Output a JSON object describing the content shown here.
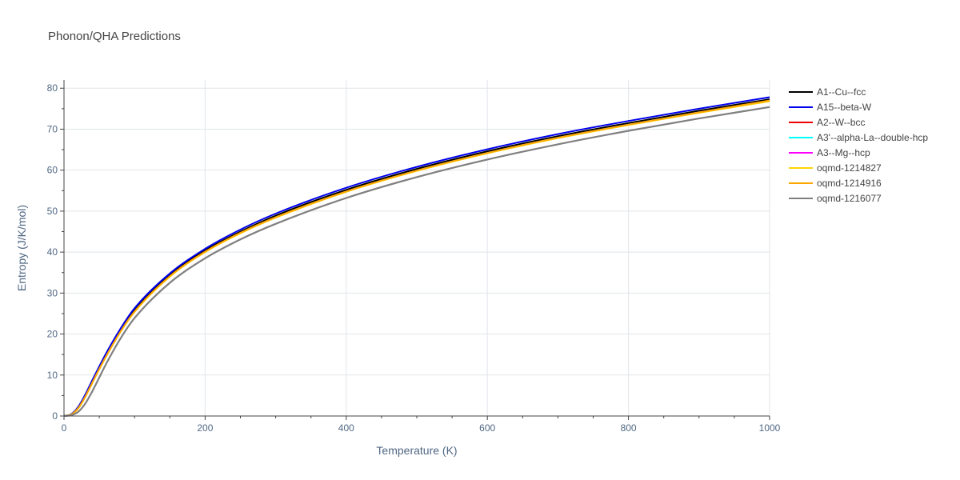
{
  "chart_data": {
    "type": "line",
    "title": "Phonon/QHA Predictions",
    "xlabel": "Temperature (K)",
    "ylabel": "Entropy (J/K/mol)",
    "xlim": [
      0,
      1000
    ],
    "ylim": [
      0,
      82
    ],
    "xticks": [
      0,
      200,
      400,
      600,
      800,
      1000
    ],
    "yticks": [
      0,
      10,
      20,
      30,
      40,
      50,
      60,
      70,
      80
    ],
    "grid": true,
    "legend_position": "right",
    "x": [
      0,
      10,
      20,
      30,
      40,
      50,
      60,
      80,
      100,
      150,
      200,
      250,
      300,
      400,
      500,
      600,
      700,
      800,
      900,
      1000
    ],
    "series": [
      {
        "name": "A1--Cu--fcc",
        "color": "#000000",
        "width": 2,
        "values": [
          0,
          0.4,
          2.0,
          4.9,
          8.3,
          11.7,
          15.0,
          20.9,
          25.8,
          34.4,
          40.4,
          45.0,
          48.9,
          55.2,
          60.3,
          64.6,
          68.3,
          71.5,
          74.5,
          77.3
        ]
      },
      {
        "name": "A15--beta-W",
        "color": "#0000ee",
        "width": 2,
        "values": [
          0,
          0.45,
          2.2,
          5.2,
          8.7,
          12.1,
          15.4,
          21.3,
          26.3,
          34.8,
          40.8,
          45.5,
          49.4,
          55.7,
          60.8,
          65.1,
          68.8,
          72.0,
          75.0,
          77.8
        ]
      },
      {
        "name": "A2--W--bcc",
        "color": "#ee0000",
        "width": 1.5,
        "values": [
          0,
          0.2,
          1.0,
          3.0,
          6.0,
          9.4,
          12.8,
          18.9,
          23.9,
          32.5,
          38.5,
          43.1,
          46.9,
          53.2,
          58.3,
          62.6,
          66.3,
          69.6,
          72.6,
          75.4
        ]
      },
      {
        "name": "A3'--alpha-La--double-hcp",
        "color": "#00ffff",
        "width": 1.5,
        "values": [
          0,
          0.2,
          1.0,
          3.0,
          6.0,
          9.4,
          12.8,
          18.9,
          23.9,
          32.5,
          38.5,
          43.1,
          46.9,
          53.2,
          58.3,
          62.6,
          66.3,
          69.6,
          72.6,
          75.4
        ]
      },
      {
        "name": "A3--Mg--hcp",
        "color": "#ff00ff",
        "width": 1.5,
        "values": [
          0,
          0.2,
          1.0,
          3.0,
          6.0,
          9.4,
          12.8,
          18.9,
          23.9,
          32.5,
          38.5,
          43.1,
          46.9,
          53.2,
          58.3,
          62.6,
          66.3,
          69.6,
          72.6,
          75.4
        ]
      },
      {
        "name": "oqmd-1214827",
        "color": "#ffd700",
        "width": 2,
        "values": [
          0,
          0.35,
          1.8,
          4.6,
          8.0,
          11.4,
          14.6,
          20.5,
          25.4,
          34.0,
          40.0,
          44.6,
          48.4,
          54.7,
          59.8,
          64.1,
          67.8,
          71.0,
          74.0,
          76.8
        ]
      },
      {
        "name": "oqmd-1214916",
        "color": "#ffa500",
        "width": 2,
        "values": [
          0,
          0.35,
          1.9,
          4.7,
          8.1,
          11.5,
          14.7,
          20.6,
          25.5,
          34.1,
          40.1,
          44.7,
          48.5,
          54.8,
          59.9,
          64.2,
          67.9,
          71.1,
          74.1,
          77.0
        ]
      },
      {
        "name": "oqmd-1216077",
        "color": "#808080",
        "width": 2.2,
        "values": [
          0,
          0.2,
          1.0,
          3.0,
          6.0,
          9.4,
          12.8,
          18.9,
          23.9,
          32.5,
          38.5,
          43.1,
          46.9,
          53.2,
          58.3,
          62.6,
          66.3,
          69.6,
          72.6,
          75.4
        ]
      }
    ]
  }
}
